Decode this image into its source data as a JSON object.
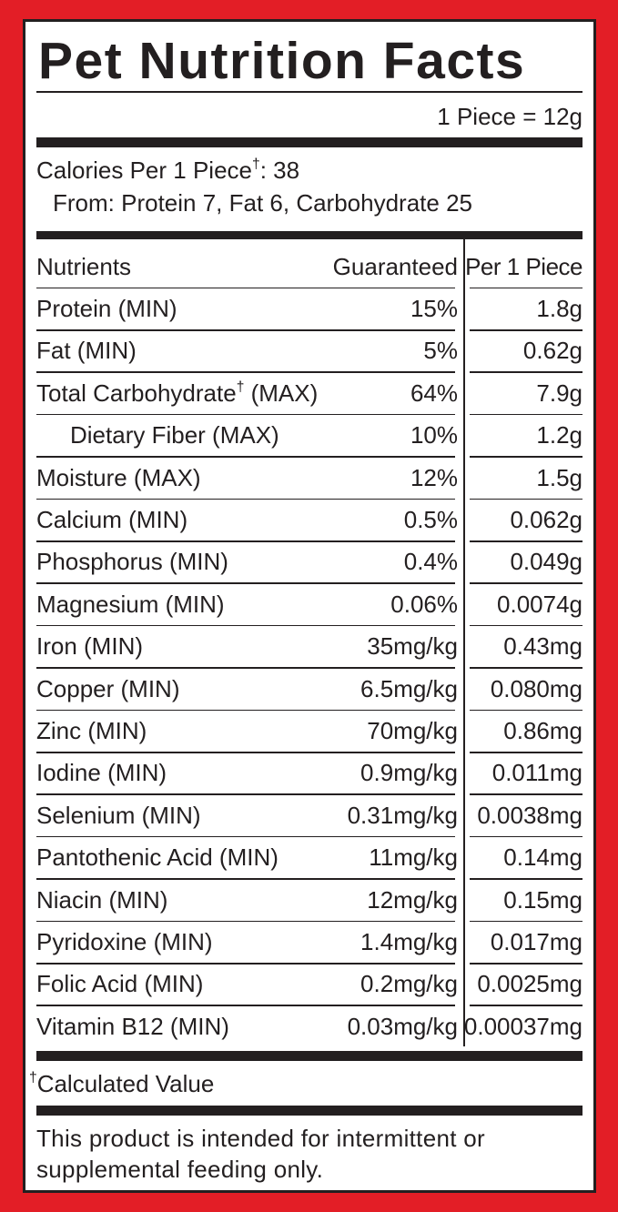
{
  "header": {
    "title": "Pet Nutrition Facts",
    "serving": "1 Piece = 12g"
  },
  "calories": {
    "line": "Calories Per 1 Piece†: 38",
    "from": "From: Protein 7, Fat 6, Carbohydrate 25"
  },
  "table": {
    "columns": [
      "Nutrients",
      "Guaranteed",
      "Per 1 Piece"
    ],
    "rows": [
      {
        "nutrient": "Protein (MIN)",
        "guaranteed": "15%",
        "per_piece": "1.8g"
      },
      {
        "nutrient": "Fat (MIN)",
        "guaranteed": "5%",
        "per_piece": "0.62g"
      },
      {
        "nutrient": "Total Carbohydrate† (MAX)",
        "guaranteed": "64%",
        "per_piece": "7.9g"
      },
      {
        "nutrient": "Dietary Fiber (MAX)",
        "guaranteed": "10%",
        "per_piece": "1.2g",
        "indent": true
      },
      {
        "nutrient": "Moisture (MAX)",
        "guaranteed": "12%",
        "per_piece": "1.5g"
      },
      {
        "nutrient": "Calcium (MIN)",
        "guaranteed": "0.5%",
        "per_piece": "0.062g"
      },
      {
        "nutrient": "Phosphorus (MIN)",
        "guaranteed": "0.4%",
        "per_piece": "0.049g"
      },
      {
        "nutrient": "Magnesium (MIN)",
        "guaranteed": "0.06%",
        "per_piece": "0.0074g"
      },
      {
        "nutrient": "Iron (MIN)",
        "guaranteed": "35mg/kg",
        "per_piece": "0.43mg"
      },
      {
        "nutrient": "Copper (MIN)",
        "guaranteed": "6.5mg/kg",
        "per_piece": "0.080mg"
      },
      {
        "nutrient": "Zinc (MIN)",
        "guaranteed": "70mg/kg",
        "per_piece": "0.86mg"
      },
      {
        "nutrient": "Iodine (MIN)",
        "guaranteed": "0.9mg/kg",
        "per_piece": "0.011mg"
      },
      {
        "nutrient": "Selenium (MIN)",
        "guaranteed": "0.31mg/kg",
        "per_piece": "0.0038mg"
      },
      {
        "nutrient": "Pantothenic Acid (MIN)",
        "guaranteed": "11mg/kg",
        "per_piece": "0.14mg"
      },
      {
        "nutrient": "Niacin (MIN)",
        "guaranteed": "12mg/kg",
        "per_piece": "0.15mg"
      },
      {
        "nutrient": "Pyridoxine (MIN)",
        "guaranteed": "1.4mg/kg",
        "per_piece": "0.017mg"
      },
      {
        "nutrient": "Folic Acid (MIN)",
        "guaranteed": "0.2mg/kg",
        "per_piece": "0.0025mg"
      },
      {
        "nutrient": "Vitamin B12 (MIN)",
        "guaranteed": "0.03mg/kg",
        "per_piece": "0.00037mg"
      }
    ]
  },
  "footnote": "†Calculated Value",
  "notice": "This product is intended for intermittent or supplemental feeding only."
}
